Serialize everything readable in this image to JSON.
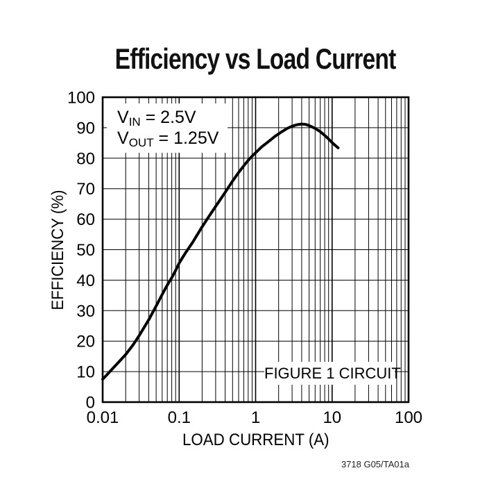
{
  "title": "Efficiency vs Load Current",
  "watermark": "3718 G05/TA01a",
  "annotations": {
    "vin": {
      "base": "V",
      "sub": "IN",
      "rest": " = 2.5V"
    },
    "vout": {
      "base": "V",
      "sub": "OUT",
      "rest": " = 1.25V"
    },
    "figure_label": "FIGURE 1 CIRCUIT"
  },
  "chart_data": {
    "type": "line",
    "title": "Efficiency vs Load Current",
    "xlabel": "LOAD CURRENT (A)",
    "ylabel": "EFFICIENCY (%)",
    "x_scale": "log",
    "grid": true,
    "legend": "none",
    "xlim": [
      0.01,
      100
    ],
    "ylim": [
      0,
      100
    ],
    "x_ticks": [
      0.01,
      0.1,
      1,
      10,
      100
    ],
    "x_tick_labels": [
      "0.01",
      "0.1",
      "1",
      "10",
      "100"
    ],
    "y_ticks": [
      0,
      10,
      20,
      30,
      40,
      50,
      60,
      70,
      80,
      90,
      100
    ],
    "y_tick_labels": [
      "0",
      "10",
      "20",
      "30",
      "40",
      "50",
      "60",
      "70",
      "80",
      "90",
      "100"
    ],
    "line_color": "#000000",
    "background": "#ffffff",
    "conditions": [
      "VIN = 2.5V",
      "VOUT = 1.25V"
    ],
    "series": [
      {
        "name": "Efficiency (VIN = 2.5V, VOUT = 1.25V, Figure 1 circuit)",
        "points": [
          [
            0.01,
            7.5
          ],
          [
            0.012,
            9.6
          ],
          [
            0.015,
            12.2
          ],
          [
            0.02,
            15.6
          ],
          [
            0.025,
            18.8
          ],
          [
            0.03,
            21.8
          ],
          [
            0.04,
            27.0
          ],
          [
            0.05,
            31.5
          ],
          [
            0.06,
            35.3
          ],
          [
            0.07,
            38.4
          ],
          [
            0.08,
            40.8
          ],
          [
            0.09,
            43.2
          ],
          [
            0.1,
            45.6
          ],
          [
            0.12,
            48.8
          ],
          [
            0.15,
            52.4
          ],
          [
            0.2,
            57.5
          ],
          [
            0.25,
            61.2
          ],
          [
            0.3,
            64.2
          ],
          [
            0.4,
            68.8
          ],
          [
            0.5,
            72.5
          ],
          [
            0.6,
            75.3
          ],
          [
            0.7,
            77.5
          ],
          [
            0.8,
            79.3
          ],
          [
            0.9,
            80.7
          ],
          [
            1,
            81.8
          ],
          [
            1.2,
            83.7
          ],
          [
            1.5,
            85.6
          ],
          [
            1.8,
            87.2
          ],
          [
            2.2,
            88.7
          ],
          [
            2.6,
            89.8
          ],
          [
            3,
            90.5
          ],
          [
            3.5,
            91.0
          ],
          [
            4,
            91.2
          ],
          [
            4.5,
            91.1
          ],
          [
            5,
            90.7
          ],
          [
            6,
            89.8
          ],
          [
            7,
            88.7
          ],
          [
            8,
            87.5
          ],
          [
            9,
            86.3
          ],
          [
            10,
            85.1
          ],
          [
            11,
            84.2
          ],
          [
            12,
            83.4
          ]
        ]
      }
    ]
  }
}
